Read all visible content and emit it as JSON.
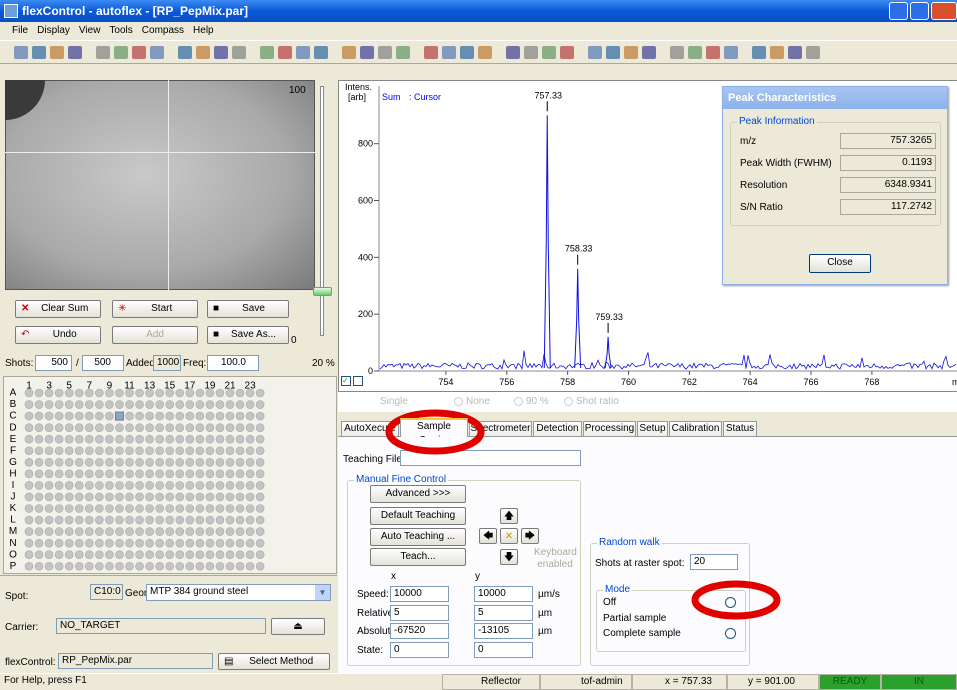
{
  "window": {
    "title": "flexControl - autoflex - [RP_PepMix.par]"
  },
  "menu": [
    "File",
    "Display",
    "View",
    "Tools",
    "Compass",
    "Help"
  ],
  "camera": {
    "slider_max": 100,
    "slider_min": 0
  },
  "buttons": {
    "clear_sum": "Clear Sum",
    "start": "Start",
    "save": "Save",
    "undo": "Undo",
    "add": "Add",
    "save_as": "Save As..."
  },
  "shots": {
    "label": "Shots:",
    "value": 500,
    "sep": "/",
    "total": 500,
    "added_label": "Added:",
    "added": 1000,
    "freq_label": "Freq:",
    "freq": "100.0",
    "percent": "20 %"
  },
  "plate": {
    "columns": [
      1,
      3,
      5,
      7,
      9,
      11,
      13,
      15,
      17,
      19,
      21,
      23
    ],
    "rows": [
      "A",
      "B",
      "C",
      "D",
      "E",
      "F",
      "G",
      "H",
      "I",
      "J",
      "K",
      "L",
      "M",
      "N",
      "O",
      "P"
    ]
  },
  "spot": {
    "label": "Spot:",
    "value": "C10:0",
    "geometry_label": "Geometry:",
    "geometry": "MTP 384 ground steel",
    "carrier_label": "Carrier:",
    "carrier": "NO_TARGET",
    "method_label": "flexControl:",
    "method": "RP_PepMix.par",
    "select_method": "Select Method"
  },
  "spectrum": {
    "y_label_1": "Intens.",
    "y_label_2": "[arb]",
    "legend_sum": "Sum",
    "legend_cursor": ": Cursor",
    "x_unit": "m/",
    "xlim": [
      751.8,
      770.6
    ],
    "ylim": [
      0,
      1003
    ],
    "xticks": [
      754,
      756,
      758,
      760,
      762,
      764,
      766,
      768
    ],
    "yticks": [
      0,
      200,
      400,
      600,
      800
    ],
    "peaks": {
      "x": [
        757.33,
        758.33,
        759.33
      ],
      "heights": [
        900,
        360,
        120
      ]
    }
  },
  "display_options": [
    "Single",
    "None",
    "90 %",
    "Shot ratio"
  ],
  "tabs": [
    "AutoXecute",
    "Sample Carrier",
    "Spectrometer",
    "Detection",
    "Processing",
    "Setup",
    "Calibration",
    "Status"
  ],
  "sample_carrier": {
    "teaching_file_label": "Teaching File:",
    "manual_group": "Manual Fine Control",
    "advanced": "Advanced >>>",
    "default_teaching": "Default Teaching",
    "auto_teaching": "Auto Teaching ...",
    "teach": "Teach...",
    "keyboard": "Keyboard enabled",
    "x_header": "x",
    "y_header": "y",
    "rows": [
      {
        "label": "Speed:",
        "x": 10000,
        "y": 10000,
        "unit": "µm/s"
      },
      {
        "label": "Relative:",
        "x": 5,
        "y": 5,
        "unit": "µm"
      },
      {
        "label": "Absolute:",
        "x": -67520,
        "y": -13105,
        "unit": "µm"
      },
      {
        "label": "State:",
        "x": 0,
        "y": 0
      }
    ],
    "random_walk": "Random walk",
    "shots_raster_label": "Shots at raster spot:",
    "shots_raster": 20,
    "mode": "Mode",
    "modes": [
      "Off",
      "Partial sample",
      "Complete sample"
    ]
  },
  "peak_dialog": {
    "title": "Peak Characteristics",
    "group": "Peak Information",
    "rows": [
      {
        "label": "m/z",
        "value": 757.3265
      },
      {
        "label": "Peak Width (FWHM)",
        "value": 0.1193
      },
      {
        "label": "Resolution",
        "value": 6348.9341
      },
      {
        "label": "S/N Ratio",
        "value": 117.2742
      }
    ],
    "close": "Close"
  },
  "status": {
    "help": "For Help, press F1",
    "mode": "Reflector",
    "user": "tof-admin",
    "x": "x = 757.33",
    "y": "y = 901.00",
    "ready": "READY",
    "in": "IN"
  }
}
